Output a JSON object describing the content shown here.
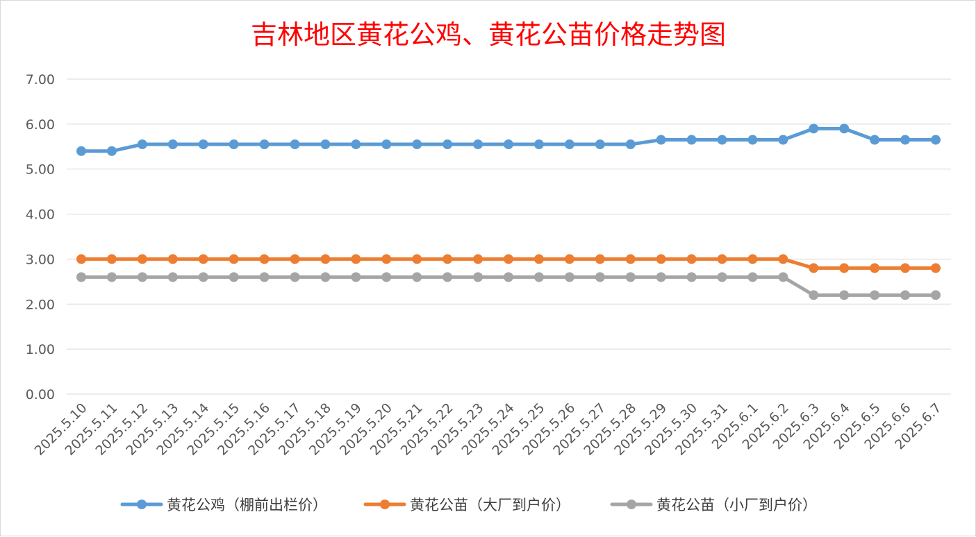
{
  "colors": {
    "title": "#ff0000",
    "gridline": "#d9d9d9",
    "axis_text": "#595959",
    "series": [
      "#5b9bd5",
      "#ed7d31",
      "#a5a5a5"
    ]
  },
  "chart_data": {
    "type": "line",
    "title": "吉林地区黄花公鸡、黄花公苗价格走势图",
    "xlabel": "",
    "ylabel": "",
    "ylim": [
      0,
      7
    ],
    "ytick_step": 1,
    "ytick_labels": [
      "0.00",
      "1.00",
      "2.00",
      "3.00",
      "4.00",
      "5.00",
      "6.00",
      "7.00"
    ],
    "grid": true,
    "legend_position": "bottom",
    "categories": [
      "2025.5.10",
      "2025.5.11",
      "2025.5.12",
      "2025.5.13",
      "2025.5.14",
      "2025.5.15",
      "2025.5.16",
      "2025.5.17",
      "2025.5.18",
      "2025.5.19",
      "2025.5.20",
      "2025.5.21",
      "2025.5.22",
      "2025.5.23",
      "2025.5.24",
      "2025.5.25",
      "2025.5.26",
      "2025.5.27",
      "2025.5.28",
      "2025.5.29",
      "2025.5.30",
      "2025.5.31",
      "2025.6.1",
      "2025.6.2",
      "2025.6.3",
      "2025.6.4",
      "2025.6.5",
      "2025.6.6",
      "2025.6.7"
    ],
    "series": [
      {
        "name": "黄花公鸡（棚前出栏价）",
        "color": "#5b9bd5",
        "values": [
          5.4,
          5.4,
          5.55,
          5.55,
          5.55,
          5.55,
          5.55,
          5.55,
          5.55,
          5.55,
          5.55,
          5.55,
          5.55,
          5.55,
          5.55,
          5.55,
          5.55,
          5.55,
          5.55,
          5.65,
          5.65,
          5.65,
          5.65,
          5.65,
          5.9,
          5.9,
          5.65,
          5.65,
          5.65
        ]
      },
      {
        "name": "黄花公苗（大厂到户价）",
        "color": "#ed7d31",
        "values": [
          3.0,
          3.0,
          3.0,
          3.0,
          3.0,
          3.0,
          3.0,
          3.0,
          3.0,
          3.0,
          3.0,
          3.0,
          3.0,
          3.0,
          3.0,
          3.0,
          3.0,
          3.0,
          3.0,
          3.0,
          3.0,
          3.0,
          3.0,
          3.0,
          2.8,
          2.8,
          2.8,
          2.8,
          2.8
        ]
      },
      {
        "name": "黄花公苗（小厂到户价）",
        "color": "#a5a5a5",
        "values": [
          2.6,
          2.6,
          2.6,
          2.6,
          2.6,
          2.6,
          2.6,
          2.6,
          2.6,
          2.6,
          2.6,
          2.6,
          2.6,
          2.6,
          2.6,
          2.6,
          2.6,
          2.6,
          2.6,
          2.6,
          2.6,
          2.6,
          2.6,
          2.6,
          2.2,
          2.2,
          2.2,
          2.2,
          2.2
        ]
      }
    ]
  }
}
